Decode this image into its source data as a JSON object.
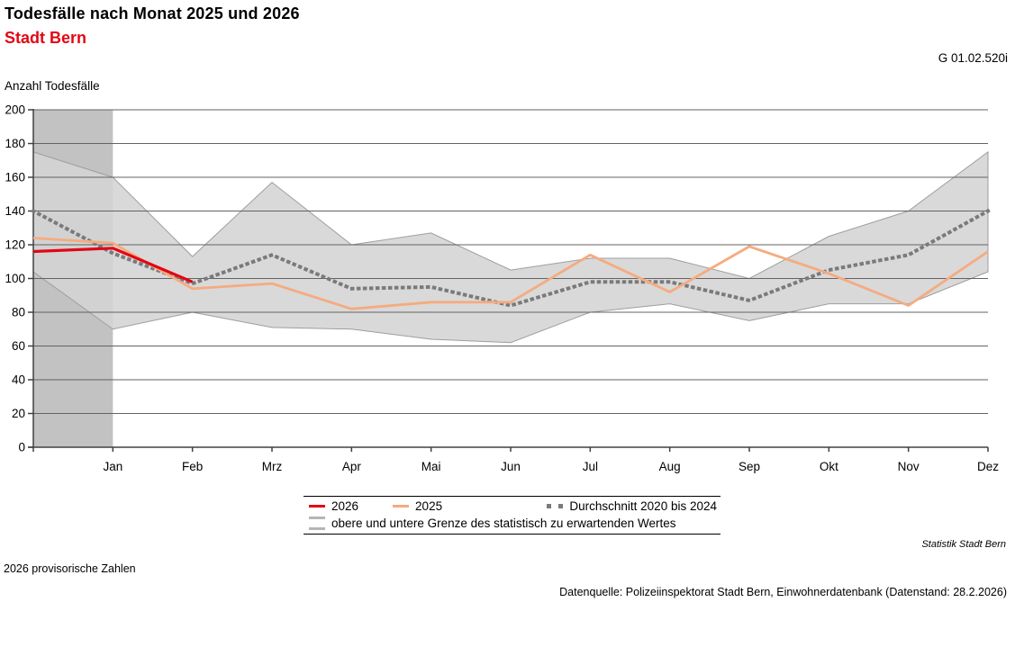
{
  "header": {
    "title": "Todesfälle nach Monat 2025 und 2026",
    "subtitle": "Stadt Bern",
    "figure_code": "G 01.02.520i",
    "axis_title": "Anzahl Todesfälle"
  },
  "legend": {
    "series_2026": "2026",
    "series_2025": "2025",
    "series_avg": "Durchschnitt 2020 bis 2024",
    "band": "obere und untere Grenze des statistisch zu erwartenden Wertes"
  },
  "footnotes": {
    "branding": "Statistik Stadt Bern",
    "provisional": "2026 provisorische Zahlen",
    "source": "Datenquelle: Polizeiinspektorat Stadt Bern, Einwohnerdatenbank (Datenstand: 28.2.2026)"
  },
  "chart_data": {
    "type": "line",
    "title": "Todesfälle nach Monat 2025 und 2026",
    "subtitle": "Stadt Bern",
    "ylabel": "Anzahl Todesfälle",
    "ylim": [
      0,
      200
    ],
    "ytick_step": 20,
    "grid": true,
    "legend_position": "bottom",
    "categories": [
      "Jan",
      "Feb",
      "Mrz",
      "Apr",
      "Mai",
      "Jun",
      "Jul",
      "Aug",
      "Sep",
      "Okt",
      "Nov",
      "Dez"
    ],
    "note": "Each series has 13 points: the first point sits on the y-axis (December of previous year), followed by Jan..Dez.",
    "series": [
      {
        "name": "2026",
        "color": "#e30613",
        "style": "solid",
        "stroke_width": 3.2,
        "values": [
          116,
          118,
          98,
          null,
          null,
          null,
          null,
          null,
          null,
          null,
          null,
          null,
          null
        ]
      },
      {
        "name": "2025",
        "color": "#f5ab80",
        "style": "solid",
        "stroke_width": 2.8,
        "values": [
          124,
          121,
          94,
          97,
          82,
          86,
          86,
          114,
          92,
          119,
          103,
          84,
          116
        ]
      },
      {
        "name": "Durchschnitt 2020 bis 2024",
        "color": "#7a7a7a",
        "style": "dotted",
        "stroke_width": 4,
        "values": [
          140,
          115,
          97,
          114,
          94,
          95,
          84,
          98,
          98,
          87,
          105,
          114,
          140
        ]
      }
    ],
    "band": {
      "name": "obere und untere Grenze des statistisch zu erwartenden Wertes",
      "fill": "#d4d4d4",
      "fill_opacity": 0.88,
      "stroke": "#9e9e9e",
      "upper": [
        175,
        160,
        113,
        157,
        120,
        127,
        105,
        112,
        112,
        100,
        125,
        140,
        175
      ],
      "lower": [
        104,
        70,
        80,
        71,
        70,
        64,
        62,
        80,
        85,
        75,
        85,
        85,
        104
      ]
    },
    "highlight_column": {
      "meaning": "months with provisional 2026 data",
      "from_index": 0,
      "to_index": 1,
      "color": "#c2c2c2"
    },
    "colors": {
      "grid": "#636363",
      "axis": "#404040",
      "subtitle_red": "#e30613"
    }
  }
}
